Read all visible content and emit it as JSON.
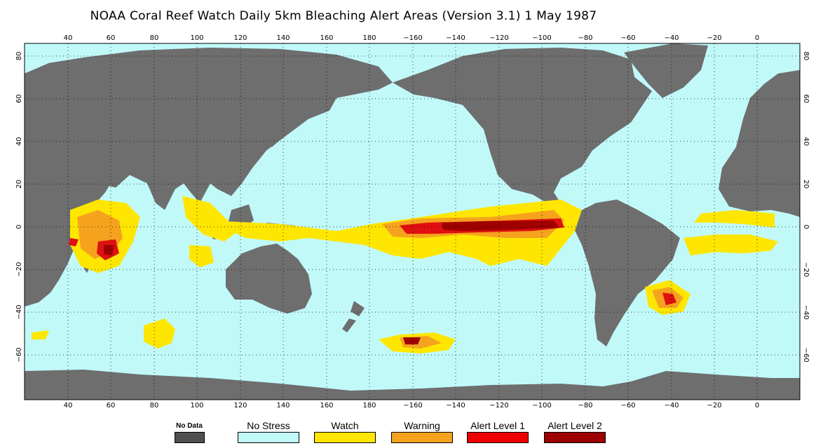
{
  "title": "NOAA Coral Reef Watch Daily 5km Bleaching Alert Areas (Version 3.1)  1 May 1987",
  "map": {
    "longitude_ticks": [
      "40",
      "60",
      "80",
      "100",
      "120",
      "140",
      "160",
      "180",
      "−160",
      "−140",
      "−120",
      "−100",
      "−80",
      "−60",
      "−40",
      "−20",
      "0"
    ],
    "latitude_ticks": [
      "80",
      "60",
      "40",
      "20",
      "0",
      "−20",
      "−40",
      "−60"
    ],
    "colors": {
      "ocean": "#c1f9f9",
      "land": "#6e6e6e",
      "watch": "#ffe600",
      "warning": "#f5a31e",
      "alert1": "#e01010",
      "alert2": "#a00000"
    }
  },
  "legend": [
    {
      "label": "No Data",
      "color": "#4f4f4f"
    },
    {
      "label": "No Stress",
      "color": "#c1f9f9"
    },
    {
      "label": "Watch",
      "color": "#ffe600"
    },
    {
      "label": "Warning",
      "color": "#f5a31e"
    },
    {
      "label": "Alert Level 1",
      "color": "#ee0000"
    },
    {
      "label": "Alert Level 2",
      "color": "#9c0000"
    }
  ]
}
